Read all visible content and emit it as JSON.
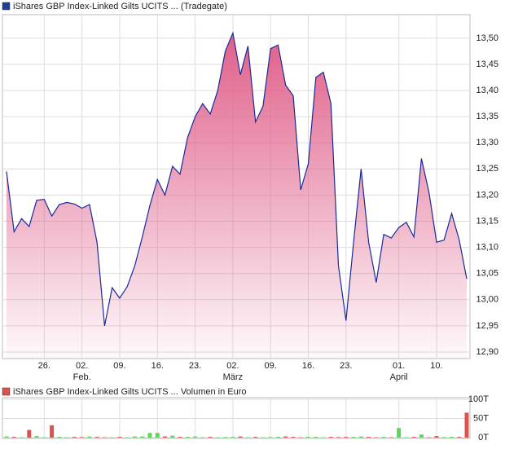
{
  "chart_data": [
    {
      "type": "area",
      "legend": "iShares GBP Index-Linked Gilts UCITS ... (Tradegate)",
      "legend_color": "#1c3f94",
      "categories": [
        "01-19",
        "01-20",
        "01-21",
        "01-22",
        "01-23",
        "01-26",
        "01-27",
        "01-28",
        "01-29",
        "01-30",
        "02-02",
        "02-03",
        "02-04",
        "02-05",
        "02-06",
        "02-09",
        "02-10",
        "02-11",
        "02-12",
        "02-13",
        "02-16",
        "02-17",
        "02-18",
        "02-19",
        "02-20",
        "02-23",
        "02-24",
        "02-25",
        "02-26",
        "02-27",
        "03-02",
        "03-03",
        "03-04",
        "03-05",
        "03-06",
        "03-09",
        "03-10",
        "03-11",
        "03-12",
        "03-13",
        "03-16",
        "03-17",
        "03-18",
        "03-19",
        "03-20",
        "03-23",
        "03-24",
        "03-25",
        "03-26",
        "03-27",
        "03-30",
        "03-31",
        "04-01",
        "04-02",
        "04-07",
        "04-08",
        "04-09",
        "04-10",
        "04-13",
        "04-14",
        "04-15",
        "04-16"
      ],
      "values": [
        13.245,
        13.13,
        13.155,
        13.14,
        13.19,
        13.192,
        13.16,
        13.182,
        13.186,
        13.183,
        13.175,
        13.182,
        13.11,
        12.95,
        13.023,
        13.003,
        13.025,
        13.065,
        13.12,
        13.18,
        13.23,
        13.2,
        13.255,
        13.24,
        13.31,
        13.35,
        13.375,
        13.355,
        13.4,
        13.475,
        13.51,
        13.43,
        13.485,
        13.34,
        13.37,
        13.48,
        13.487,
        13.41,
        13.39,
        13.21,
        13.26,
        13.425,
        13.435,
        13.375,
        13.065,
        12.96,
        13.11,
        13.25,
        13.11,
        13.033,
        13.125,
        13.118,
        13.138,
        13.148,
        13.12,
        13.27,
        13.205,
        13.11,
        13.114,
        13.165,
        13.115,
        13.04
      ],
      "color": "#1a2a9a",
      "fill_color": "#e0608a",
      "ylim": [
        12.8875,
        13.545
      ],
      "yticks": [
        {
          "value": 12.9,
          "label": "12,90"
        },
        {
          "value": 12.95,
          "label": "12,95"
        },
        {
          "value": 13.0,
          "label": "13,00"
        },
        {
          "value": 13.05,
          "label": "13,05"
        },
        {
          "value": 13.1,
          "label": "13,10"
        },
        {
          "value": 13.15,
          "label": "13,15"
        },
        {
          "value": 13.2,
          "label": "13,20"
        },
        {
          "value": 13.25,
          "label": "13,25"
        },
        {
          "value": 13.3,
          "label": "13,30"
        },
        {
          "value": 13.35,
          "label": "13,35"
        },
        {
          "value": 13.4,
          "label": "13,40"
        },
        {
          "value": 13.45,
          "label": "13,45"
        },
        {
          "value": 13.5,
          "label": "13,50"
        }
      ],
      "xticks": [
        {
          "value": "01-26",
          "label": "26."
        },
        {
          "value": "02-02",
          "label": "02."
        },
        {
          "value": "02-09",
          "label": "09."
        },
        {
          "value": "02-16",
          "label": "16."
        },
        {
          "value": "02-23",
          "label": "23."
        },
        {
          "value": "03-02",
          "label": "02."
        },
        {
          "value": "03-09",
          "label": "09."
        },
        {
          "value": "03-16",
          "label": "16."
        },
        {
          "value": "03-23",
          "label": "23."
        },
        {
          "value": "04-01",
          "label": "01."
        },
        {
          "value": "04-10",
          "label": "10."
        }
      ],
      "month_labels": [
        {
          "value": "02-02",
          "label": "Feb."
        },
        {
          "value": "03-02",
          "label": "März"
        },
        {
          "value": "04-01",
          "label": "April"
        }
      ],
      "grid": true
    },
    {
      "type": "bar",
      "legend": "iShares GBP Index-Linked Gilts UCITS ... Volumen in Euro",
      "legend_color": "#d9534f",
      "up_color": "#5cd65c",
      "down_color": "#d9534f",
      "values": [
        3000,
        2000,
        1000,
        20000,
        4000,
        1000,
        32000,
        2000,
        1000,
        2000,
        1500,
        3000,
        2000,
        1000,
        1000,
        2000,
        1000,
        3000,
        3000,
        12000,
        12000,
        3000,
        5000,
        2000,
        2000,
        3000,
        1000,
        2000,
        1000,
        1500,
        2000,
        3000,
        1000,
        2000,
        1000,
        1500,
        2000,
        3000,
        2000,
        1000,
        2000,
        2000,
        1000,
        2000,
        1500,
        2000,
        2000,
        3000,
        2000,
        1000,
        2000,
        1000,
        25000,
        1000,
        2000,
        8000,
        1000,
        4000,
        1500,
        2000,
        2000,
        65000
      ],
      "ylim": [
        0,
        100000
      ],
      "yticks": [
        {
          "value": 0,
          "label": "0T"
        },
        {
          "value": 50000,
          "label": "50T"
        },
        {
          "value": 100000,
          "label": "100T"
        }
      ],
      "grid": true
    }
  ]
}
